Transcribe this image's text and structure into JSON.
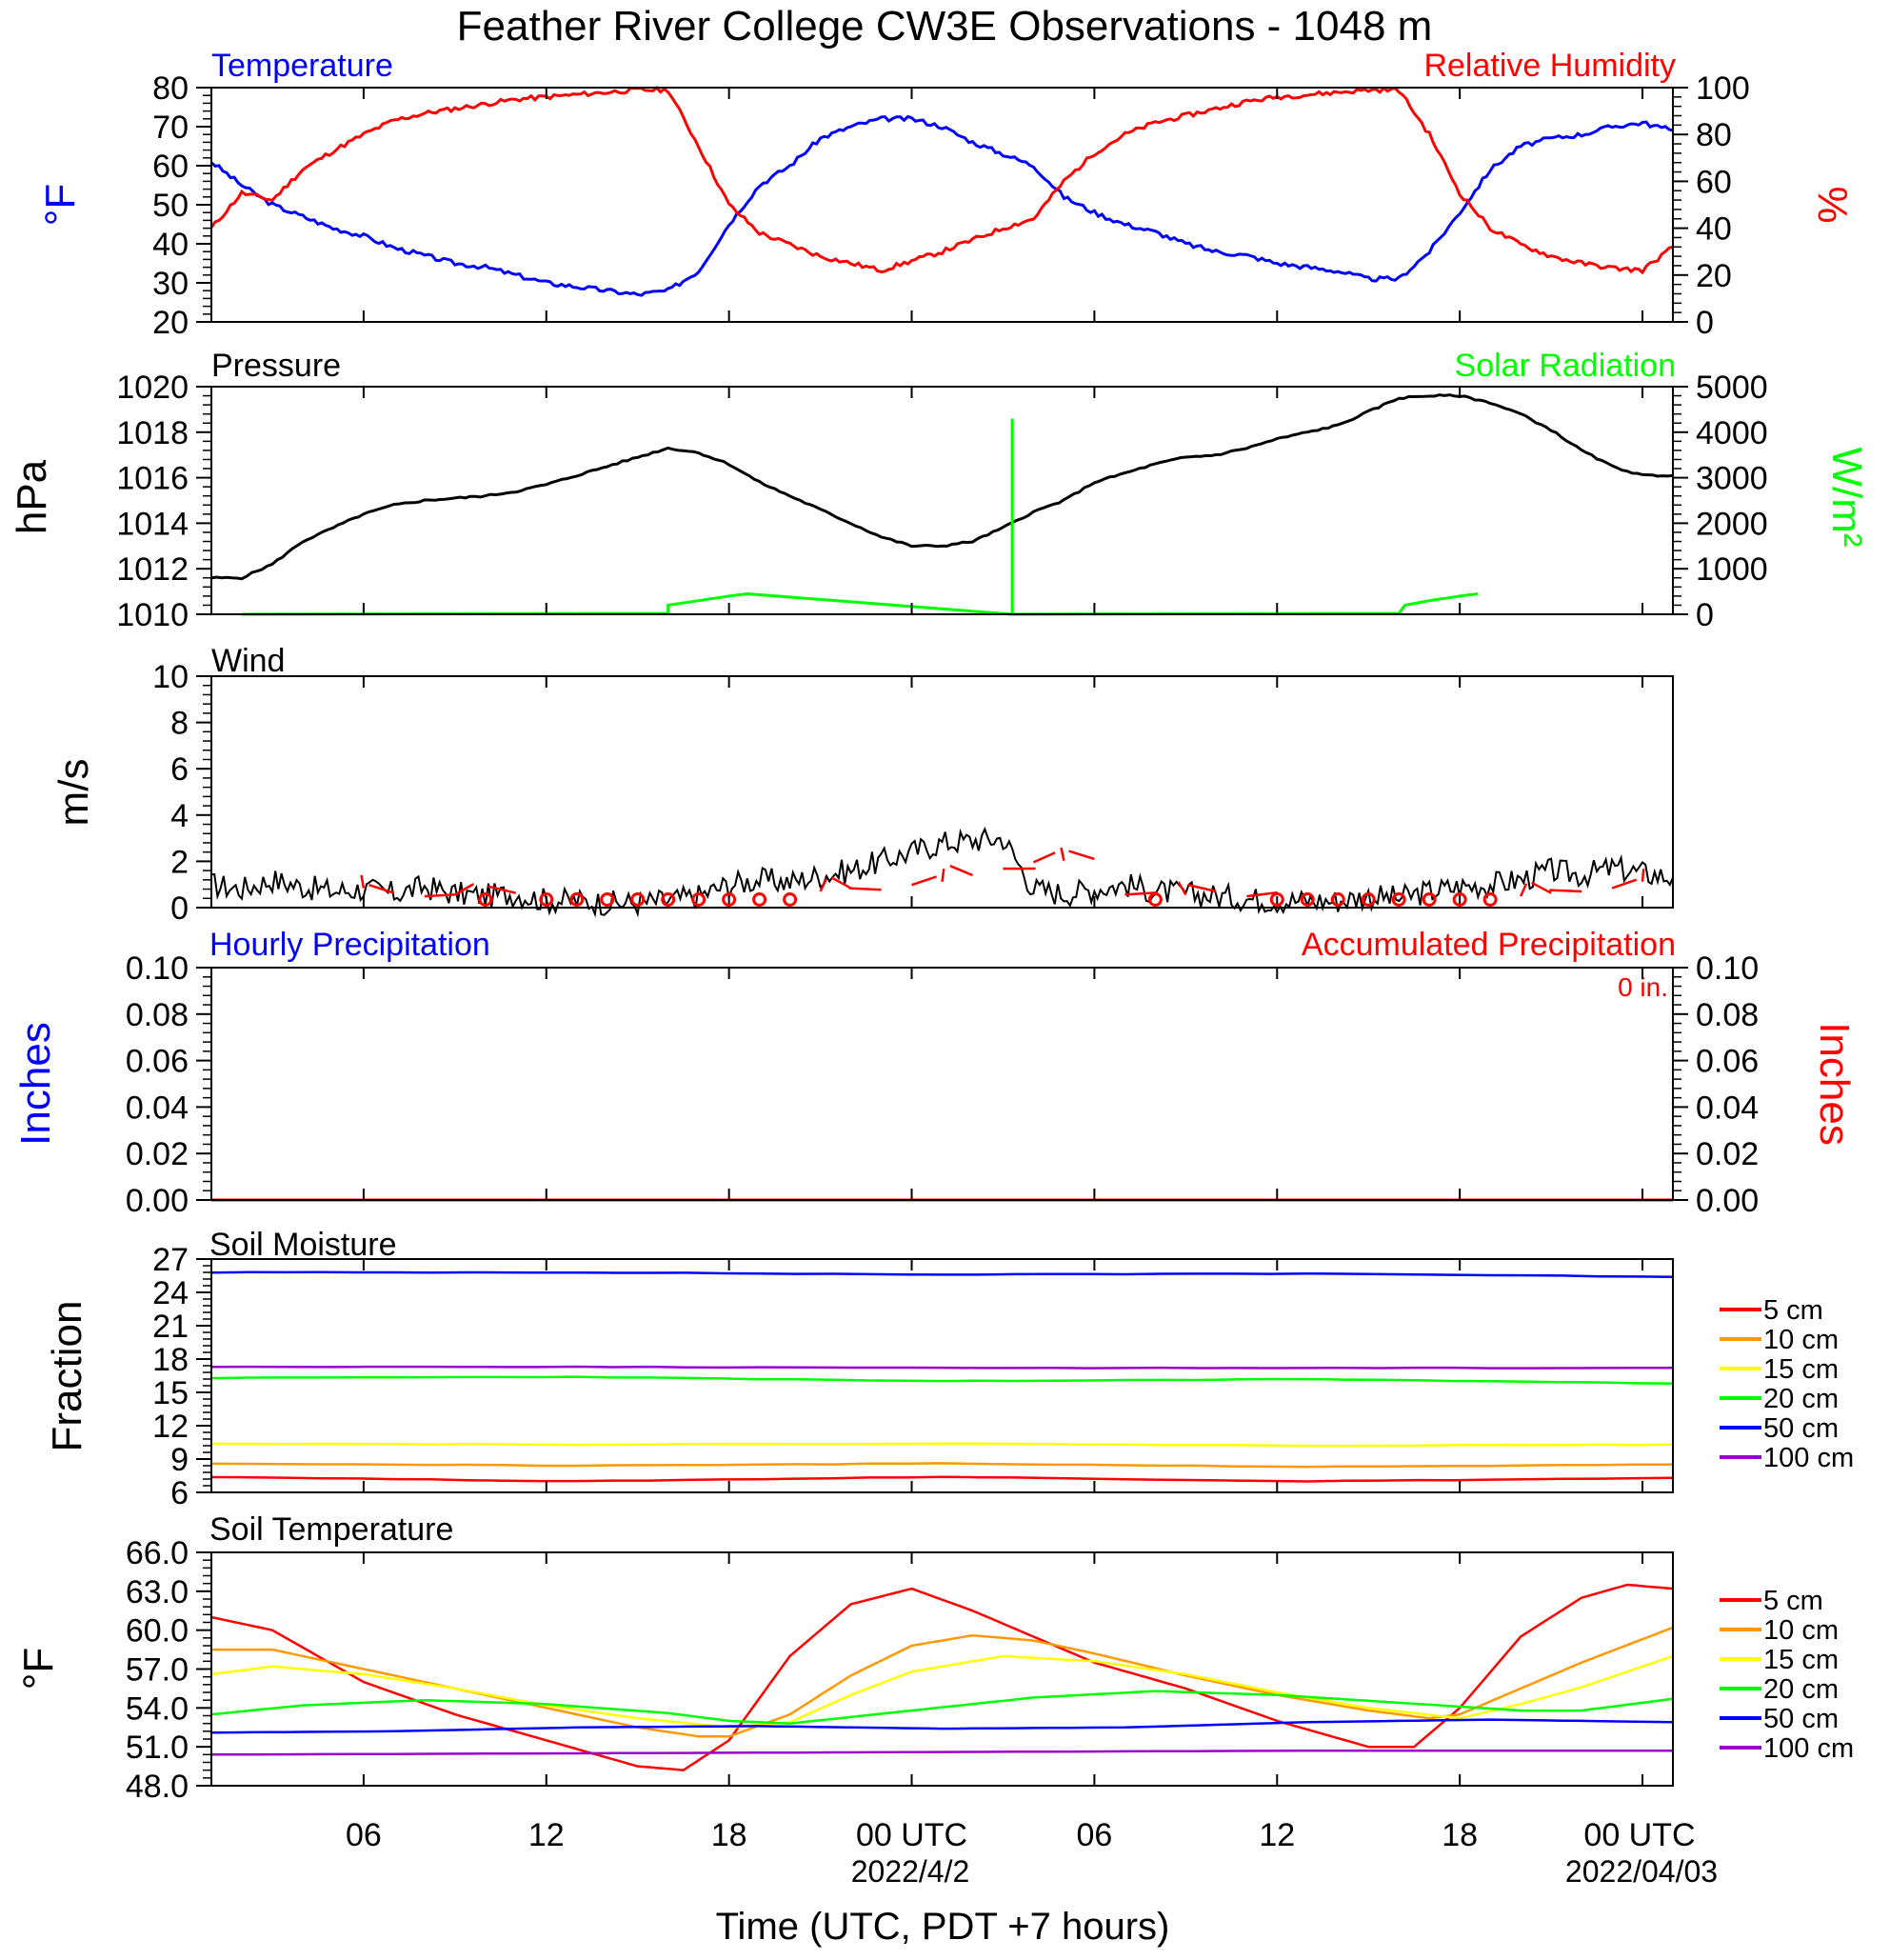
{
  "title": "Feather River College CW3E Observations - 1048 m",
  "x_axis": {
    "label": "Time (UTC, PDT +7 hours)",
    "ticks": [
      "06",
      "12",
      "18",
      "00 UTC",
      "06",
      "12",
      "18",
      "00 UTC"
    ],
    "tick_hours": [
      6,
      12,
      18,
      24,
      30,
      36,
      42,
      48
    ],
    "dates": [
      "2022/4/2",
      "2022/04/03"
    ],
    "range_hours": [
      1,
      49
    ]
  },
  "panels": {
    "temp_rh": {
      "title_left": "Temperature",
      "title_right": "Relative Humidity",
      "ylabel_left": "°F",
      "ylabel_right": "%",
      "left_ticks": [
        "20",
        "30",
        "40",
        "50",
        "60",
        "70",
        "80"
      ],
      "right_ticks": [
        "0",
        "20",
        "40",
        "60",
        "80",
        "100"
      ]
    },
    "pressure": {
      "title_left": "Pressure",
      "title_right": "Solar Radiation",
      "ylabel_left": "hPa",
      "ylabel_right": "W/m²",
      "left_ticks": [
        "1010",
        "1012",
        "1014",
        "1016",
        "1018",
        "1020"
      ],
      "right_ticks": [
        "0",
        "1000",
        "2000",
        "3000",
        "4000",
        "5000"
      ]
    },
    "wind": {
      "title_left": "Wind",
      "ylabel_left": "m/s",
      "left_ticks": [
        "0",
        "2",
        "4",
        "6",
        "8",
        "10"
      ]
    },
    "precip": {
      "title_left": "Hourly Precipitation",
      "title_right": "Accumulated Precipitation",
      "annotation": "0 in.",
      "ylabel_left": "Inches",
      "ylabel_right": "Inches",
      "left_ticks": [
        "0.00",
        "0.02",
        "0.04",
        "0.06",
        "0.08",
        "0.10"
      ],
      "right_ticks": [
        "0.00",
        "0.02",
        "0.04",
        "0.06",
        "0.08",
        "0.10"
      ]
    },
    "soil_moisture": {
      "title_left": "Soil Moisture",
      "ylabel_left": "Fraction",
      "left_ticks": [
        "6",
        "9",
        "12",
        "15",
        "18",
        "21",
        "24",
        "27"
      ],
      "legend": [
        "5 cm",
        "10 cm",
        "15 cm",
        "20 cm",
        "50 cm",
        "100 cm"
      ]
    },
    "soil_temp": {
      "title_left": "Soil Temperature",
      "ylabel_left": "°F",
      "left_ticks": [
        "48.0",
        "51.0",
        "54.0",
        "57.0",
        "60.0",
        "63.0",
        "66.0"
      ],
      "legend": [
        "5 cm",
        "10 cm",
        "15 cm",
        "20 cm",
        "50 cm",
        "100 cm"
      ]
    }
  },
  "colors": {
    "temperature": "#0000ff",
    "humidity": "#ff0000",
    "pressure": "#000000",
    "solar": "#00ff00",
    "wind": "#000000",
    "barbs": "#ff0000",
    "hourly_precip": "#0000ff",
    "accum_precip": "#ff0000",
    "depths": [
      "#ff0000",
      "#ff9900",
      "#ffff00",
      "#00ff00",
      "#0000ff",
      "#9900cc"
    ]
  },
  "chart_data": [
    {
      "type": "line",
      "title": "Temperature",
      "ylabel": "°F",
      "ylim": [
        20,
        80
      ],
      "x_unit": "hours UTC from 2022-04-01 00",
      "series": [
        {
          "name": "Temperature",
          "axis": "left",
          "x": [
            1,
            2,
            3,
            4,
            5,
            6,
            7,
            8,
            9,
            10,
            11,
            12,
            13,
            14,
            15,
            16,
            17,
            18,
            19,
            20,
            21,
            22,
            23,
            24,
            25,
            26,
            27,
            28,
            29,
            30,
            31,
            32,
            33,
            34,
            35,
            36,
            37,
            38,
            39,
            40,
            41,
            42,
            43,
            44,
            45,
            46,
            47,
            48,
            49
          ],
          "y": [
            61,
            55,
            50,
            47,
            44,
            42,
            39,
            37,
            35,
            34,
            32,
            30,
            29,
            28,
            27,
            28,
            33,
            45,
            55,
            60,
            67,
            70,
            72,
            72,
            70,
            66,
            63,
            60,
            52,
            48,
            45,
            43,
            40,
            38,
            37,
            35,
            34,
            33,
            31,
            31,
            38,
            48,
            59,
            65,
            67,
            68,
            70,
            71,
            69
          ]
        }
      ]
    },
    {
      "type": "line",
      "title": "Relative Humidity",
      "ylabel": "%",
      "ylim": [
        0,
        100
      ],
      "series": [
        {
          "name": "Relative Humidity",
          "axis": "right",
          "x": [
            1,
            2,
            3,
            4,
            5,
            6,
            7,
            8,
            9,
            10,
            11,
            12,
            13,
            14,
            15,
            16,
            17,
            18,
            19,
            20,
            21,
            22,
            23,
            24,
            25,
            26,
            27,
            28,
            29,
            30,
            31,
            32,
            33,
            34,
            35,
            36,
            37,
            38,
            39,
            40,
            41,
            42,
            43,
            44,
            45,
            46,
            47,
            48,
            49
          ],
          "y": [
            40,
            55,
            52,
            65,
            73,
            80,
            86,
            89,
            91,
            93,
            95,
            96,
            97,
            98,
            99,
            99,
            75,
            50,
            38,
            33,
            28,
            25,
            22,
            26,
            30,
            35,
            40,
            44,
            60,
            72,
            80,
            85,
            88,
            91,
            94,
            96,
            97,
            98,
            99,
            99,
            80,
            55,
            40,
            33,
            28,
            25,
            23,
            22,
            32
          ]
        }
      ]
    },
    {
      "type": "line",
      "title": "Pressure",
      "ylabel": "hPa",
      "ylim": [
        1010,
        1020
      ],
      "series": [
        {
          "name": "Pressure",
          "axis": "left",
          "x": [
            1,
            2,
            3,
            4,
            5,
            6,
            7,
            8,
            9,
            10,
            11,
            12,
            13,
            14,
            15,
            16,
            17,
            18,
            19,
            20,
            21,
            22,
            23,
            24,
            25,
            26,
            27,
            28,
            29,
            30,
            31,
            32,
            33,
            34,
            35,
            36,
            37,
            38,
            39,
            40,
            41,
            42,
            43,
            44,
            45,
            46,
            47,
            48,
            49
          ],
          "y": [
            1011.6,
            1011.6,
            1012.2,
            1013.2,
            1013.8,
            1014.4,
            1014.8,
            1015.0,
            1015.1,
            1015.2,
            1015.4,
            1015.7,
            1016.1,
            1016.5,
            1016.9,
            1017.3,
            1017.1,
            1016.6,
            1015.8,
            1015.2,
            1014.6,
            1014.0,
            1013.4,
            1013.0,
            1013.0,
            1013.2,
            1013.8,
            1014.5,
            1015.0,
            1015.8,
            1016.2,
            1016.6,
            1016.9,
            1017.0,
            1017.3,
            1017.7,
            1018.0,
            1018.3,
            1018.9,
            1019.5,
            1019.6,
            1019.6,
            1019.3,
            1018.8,
            1018.1,
            1017.2,
            1016.5,
            1016.1,
            1016.1
          ]
        }
      ]
    },
    {
      "type": "line",
      "title": "Solar Radiation",
      "ylabel": "W/m²",
      "ylim": [
        0,
        5000
      ],
      "series": [
        {
          "name": "Solar Radiation",
          "axis": "right",
          "x": [
            2,
            16,
            16,
            17,
            18,
            18.6,
            27.3,
            27.3,
            27.3,
            27.3,
            40,
            40.2,
            41,
            42,
            42.6
          ],
          "y": [
            0,
            20,
            200,
            300,
            400,
            450,
            0,
            4300,
            0,
            0,
            20,
            200,
            300,
            400,
            450
          ]
        }
      ]
    },
    {
      "type": "line",
      "title": "Wind",
      "ylabel": "m/s",
      "ylim": [
        0,
        10
      ],
      "series": [
        {
          "name": "Wind",
          "axis": "left",
          "x": [
            1,
            2,
            3,
            4,
            5,
            6,
            7,
            8,
            9,
            10,
            11,
            12,
            13,
            14,
            15,
            16,
            17,
            18,
            19,
            20,
            21,
            22,
            23,
            24,
            25,
            26,
            27,
            28,
            29,
            30,
            31,
            32,
            33,
            34,
            35,
            36,
            37,
            38,
            39,
            40,
            41,
            42,
            43,
            44,
            45,
            46,
            47,
            48,
            49
          ],
          "y": [
            1.0,
            0.8,
            1.2,
            0.9,
            0.7,
            0.8,
            0.6,
            0.9,
            0.6,
            0.5,
            0.6,
            0.3,
            0.3,
            0.2,
            0.2,
            0.3,
            0.5,
            1.0,
            1.2,
            1.1,
            1.4,
            1.6,
            2.0,
            2.4,
            2.8,
            2.9,
            3.0,
            0.8,
            0.6,
            0.8,
            1.0,
            0.7,
            0.6,
            0.5,
            0.4,
            0.3,
            0.3,
            0.3,
            0.5,
            0.4,
            0.7,
            0.9,
            1.0,
            1.2,
            1.6,
            1.4,
            1.7,
            1.5,
            1.3
          ]
        }
      ]
    },
    {
      "type": "line",
      "title": "Hourly Precipitation",
      "ylabel": "Inches",
      "ylim": [
        0,
        0.1
      ],
      "series": [
        {
          "name": "Hourly Precipitation",
          "axis": "left",
          "x": [
            1,
            49
          ],
          "y": [
            0,
            0
          ]
        },
        {
          "name": "Accumulated Precipitation",
          "axis": "right",
          "x": [
            1,
            49
          ],
          "y": [
            0,
            0
          ]
        }
      ]
    },
    {
      "type": "line",
      "title": "Soil Moisture",
      "ylabel": "Fraction",
      "ylim": [
        6,
        27
      ],
      "series": [
        {
          "name": "5 cm",
          "x": [
            1,
            13,
            25,
            37,
            49
          ],
          "y": [
            7.4,
            7.0,
            7.4,
            7.0,
            7.3
          ]
        },
        {
          "name": "10 cm",
          "x": [
            1,
            13,
            25,
            37,
            49
          ],
          "y": [
            8.6,
            8.4,
            8.6,
            8.3,
            8.5
          ]
        },
        {
          "name": "15 cm",
          "x": [
            1,
            13,
            25,
            37,
            49
          ],
          "y": [
            10.4,
            10.3,
            10.4,
            10.2,
            10.3
          ]
        },
        {
          "name": "20 cm",
          "x": [
            1,
            13,
            25,
            37,
            49
          ],
          "y": [
            16.3,
            16.4,
            16.0,
            16.2,
            15.8
          ]
        },
        {
          "name": "50 cm",
          "x": [
            1,
            13,
            25,
            37,
            49
          ],
          "y": [
            25.8,
            25.8,
            25.6,
            25.7,
            25.4
          ]
        },
        {
          "name": "100 cm",
          "x": [
            1,
            13,
            25,
            37,
            49
          ],
          "y": [
            17.3,
            17.3,
            17.2,
            17.2,
            17.2
          ]
        }
      ]
    },
    {
      "type": "line",
      "title": "Soil Temperature",
      "ylabel": "°F",
      "ylim": [
        48,
        66
      ],
      "series": [
        {
          "name": "5 cm",
          "x": [
            1,
            3,
            6,
            9,
            12,
            15,
            16.5,
            18,
            20,
            22,
            24,
            26,
            28,
            30,
            33,
            36,
            39,
            40.5,
            42,
            44,
            46,
            47.5,
            49
          ],
          "y": [
            61,
            60,
            56,
            53.5,
            51.5,
            49.5,
            49.2,
            51.5,
            58,
            62,
            63.2,
            61.5,
            59.5,
            57.5,
            55.5,
            53,
            51,
            51,
            54,
            59.5,
            62.5,
            63.5,
            63.2
          ]
        },
        {
          "name": "10 cm",
          "x": [
            1,
            3,
            6,
            9,
            12,
            15,
            17,
            18,
            20,
            22,
            24,
            26,
            28,
            30,
            33,
            36,
            39,
            41,
            42,
            44,
            46,
            49
          ],
          "y": [
            58.5,
            58.5,
            57,
            55.5,
            54,
            52.5,
            51.8,
            51.8,
            53.5,
            56.5,
            58.8,
            59.6,
            59.2,
            58.2,
            56.5,
            55,
            53.8,
            53.2,
            53.5,
            55.5,
            57.5,
            60.2
          ]
        },
        {
          "name": "15 cm",
          "x": [
            1,
            3,
            6,
            9,
            12,
            15,
            18,
            20,
            22,
            24,
            27,
            30,
            33,
            36,
            39,
            42,
            44,
            46,
            49
          ],
          "y": [
            56.6,
            57.2,
            56.6,
            55.5,
            54.2,
            53.2,
            52.5,
            52.9,
            55,
            56.8,
            58,
            57.6,
            56.6,
            55.2,
            54,
            53.2,
            54.3,
            55.6,
            58
          ]
        },
        {
          "name": "20 cm",
          "x": [
            1,
            4,
            8,
            12,
            16,
            18,
            20,
            24,
            28,
            32,
            36,
            40,
            44,
            46,
            49
          ],
          "y": [
            53.5,
            54.2,
            54.6,
            54.3,
            53.6,
            53,
            52.8,
            53.8,
            54.8,
            55.3,
            55,
            54.4,
            53.8,
            53.8,
            54.7
          ]
        },
        {
          "name": "50 cm",
          "x": [
            1,
            7,
            13,
            19,
            25,
            31,
            37,
            43,
            49
          ],
          "y": [
            52.1,
            52.2,
            52.5,
            52.6,
            52.4,
            52.5,
            52.9,
            53.1,
            52.9
          ]
        },
        {
          "name": "100 cm",
          "x": [
            1,
            13,
            25,
            37,
            49
          ],
          "y": [
            50.4,
            50.5,
            50.6,
            50.7,
            50.7
          ]
        }
      ]
    }
  ]
}
